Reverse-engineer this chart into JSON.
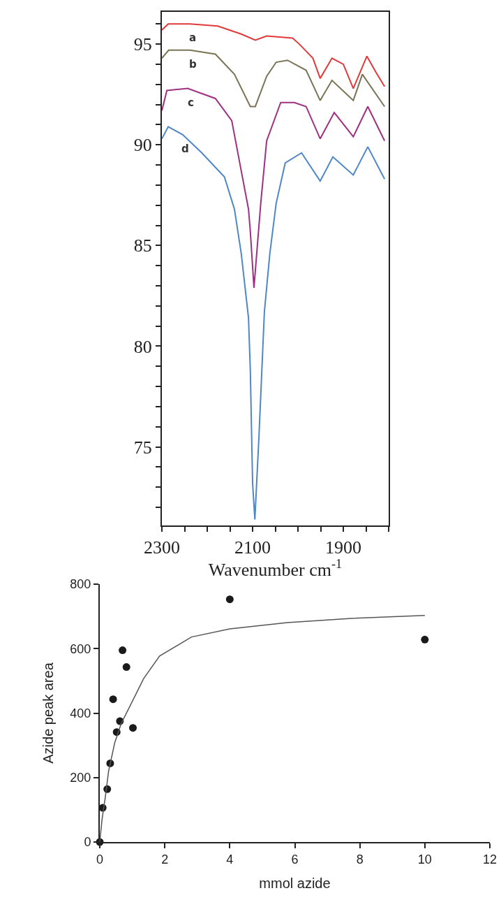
{
  "chart_data": [
    {
      "type": "line",
      "xlabel": "Wavenumber cm$^{-1}$",
      "xlim": [
        2300,
        1800
      ],
      "ylim": [
        71.1,
        96.6
      ],
      "xticks": [
        2300,
        {
          "value": 2250,
          "label": null
        },
        {
          "value": 2200,
          "label": null
        },
        {
          "value": 2150,
          "label": null
        },
        2100,
        {
          "value": 2050,
          "label": null
        },
        {
          "value": 2000,
          "label": null
        },
        {
          "value": 1950,
          "label": null
        },
        1900,
        {
          "value": 1850,
          "label": null
        },
        {
          "value": 1800,
          "label": null
        }
      ],
      "yticks": [
        {
          "value": 72,
          "label": null
        },
        {
          "value": 73,
          "label": null
        },
        {
          "value": 74,
          "label": null
        },
        75,
        {
          "value": 76,
          "label": null
        },
        {
          "value": 77,
          "label": null
        },
        {
          "value": 78,
          "label": null
        },
        {
          "value": 79,
          "label": null
        },
        80,
        {
          "value": 81,
          "label": null
        },
        {
          "value": 82,
          "label": null
        },
        {
          "value": 83,
          "label": null
        },
        {
          "value": 84,
          "label": null
        },
        85,
        {
          "value": 86,
          "label": null
        },
        {
          "value": 87,
          "label": null
        },
        {
          "value": 88,
          "label": null
        },
        {
          "value": 89,
          "label": null
        },
        90,
        {
          "value": 91,
          "label": null
        },
        {
          "value": 92,
          "label": null
        },
        {
          "value": 93,
          "label": null
        },
        {
          "value": 94,
          "label": null
        },
        95,
        {
          "value": 96,
          "label": null
        }
      ],
      "grid": false,
      "marker": "none",
      "line_style": "solid",
      "series": [
        {
          "name": "a",
          "color": "#e03a3a",
          "x": [
            2300,
            2286,
            2238,
            2177,
            2125,
            2094,
            2069,
            2012,
            1997,
            1967,
            1951,
            1925,
            1900,
            1878,
            1848,
            1828,
            1809
          ],
          "values": [
            95.7,
            96.0,
            96.0,
            95.9,
            95.5,
            95.2,
            95.4,
            95.3,
            95.0,
            94.3,
            93.3,
            94.3,
            94.0,
            92.8,
            94.4,
            93.6,
            92.9
          ]
        },
        {
          "name": "b",
          "color": "#7b7355",
          "x": [
            2300,
            2285,
            2238,
            2182,
            2140,
            2105,
            2094,
            2069,
            2048,
            2023,
            1982,
            1951,
            1925,
            1878,
            1858,
            1809
          ],
          "values": [
            94.3,
            94.7,
            94.7,
            94.5,
            93.5,
            91.9,
            91.9,
            93.4,
            94.1,
            94.2,
            93.7,
            92.2,
            93.2,
            92.2,
            93.5,
            91.9
          ]
        },
        {
          "name": "c",
          "color": "#a03080",
          "x": [
            2300,
            2289,
            2243,
            2182,
            2146,
            2109,
            2105,
            2097,
            2082,
            2069,
            2038,
            2008,
            1982,
            1951,
            1920,
            1878,
            1846,
            1809
          ],
          "values": [
            91.7,
            92.7,
            92.8,
            92.3,
            91.2,
            86.8,
            85.7,
            82.9,
            87.1,
            90.2,
            92.1,
            92.1,
            91.9,
            90.3,
            91.6,
            90.4,
            91.9,
            90.2
          ]
        },
        {
          "name": "d",
          "color": "#4f86c6",
          "x": [
            2300,
            2286,
            2254,
            2212,
            2162,
            2140,
            2125,
            2109,
            2105,
            2100,
            2095,
            2086,
            2074,
            2062,
            2048,
            2028,
            1992,
            1951,
            1923,
            1878,
            1846,
            1809
          ],
          "values": [
            90.3,
            90.9,
            90.5,
            89.6,
            88.4,
            86.8,
            84.6,
            81.4,
            78.8,
            73.2,
            71.4,
            75.5,
            81.7,
            84.6,
            87.1,
            89.1,
            89.6,
            88.2,
            89.4,
            88.5,
            89.9,
            88.3
          ]
        }
      ]
    },
    {
      "type": "scatter",
      "xlabel": "mmol azide",
      "ylabel": "Azide peak area",
      "xlim": [
        0,
        12
      ],
      "ylim": [
        0,
        800
      ],
      "xticks": [
        0,
        2,
        4,
        6,
        8,
        10,
        12
      ],
      "yticks": [
        0,
        200,
        400,
        600,
        800
      ],
      "grid": false,
      "marker": "circle",
      "series": [
        {
          "color": "#1a1a1a",
          "x": [
            0,
            0.09,
            0.23,
            0.32,
            0.41,
            0.52,
            0.62,
            0.7,
            0.82,
            1.02,
            4,
            10
          ],
          "values": [
            0,
            106,
            164,
            244,
            443,
            341,
            375,
            595,
            543,
            354,
            753,
            628
          ]
        },
        {
          "type": "line",
          "color": "#555555",
          "marker": "none",
          "x": [
            0,
            0.07,
            0.17,
            0.27,
            0.46,
            0.66,
            0.86,
            1.35,
            1.84,
            2.82,
            4,
            5.77,
            7.74,
            10
          ],
          "values": [
            0,
            70,
            139,
            219,
            308,
            368,
            408,
            507,
            577,
            636,
            661,
            681,
            694,
            703
          ]
        }
      ]
    }
  ]
}
